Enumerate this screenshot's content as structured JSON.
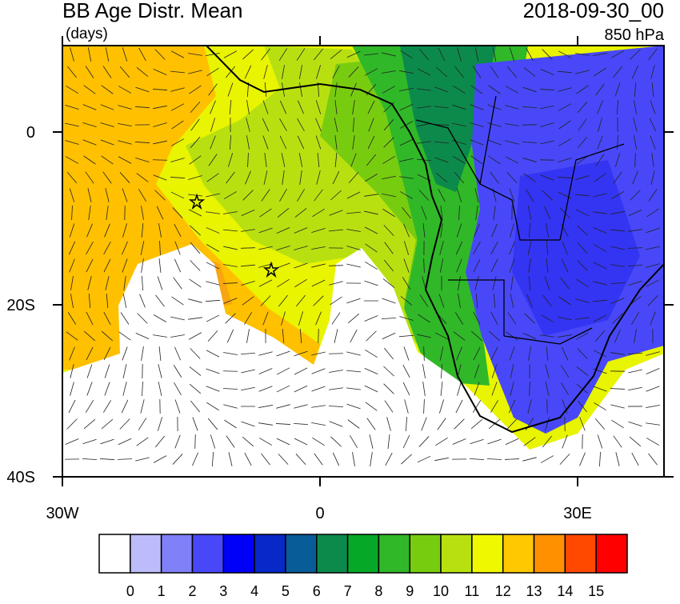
{
  "header": {
    "title": "BB Age Distr. Mean",
    "units": "(days)",
    "date": "2018-09-30_00",
    "level": "850 hPa"
  },
  "axes": {
    "y_labels": [
      "0",
      "20S",
      "40S"
    ],
    "x_labels": [
      "30W",
      "0",
      "30E"
    ]
  },
  "colorbar": {
    "labels": [
      0,
      1,
      2,
      3,
      4,
      5,
      6,
      7,
      8,
      9,
      10,
      11,
      12,
      13,
      14,
      15
    ],
    "colors": [
      "#ffffff",
      "#bcbcfa",
      "#8080f8",
      "#4848f8",
      "#0000f8",
      "#0828c8",
      "#085c98",
      "#0c8a4c",
      "#06a828",
      "#30b828",
      "#78cc10",
      "#b8e010",
      "#f0f800",
      "#ffc800",
      "#ff9000",
      "#ff4800",
      "#ff0000"
    ]
  }
}
